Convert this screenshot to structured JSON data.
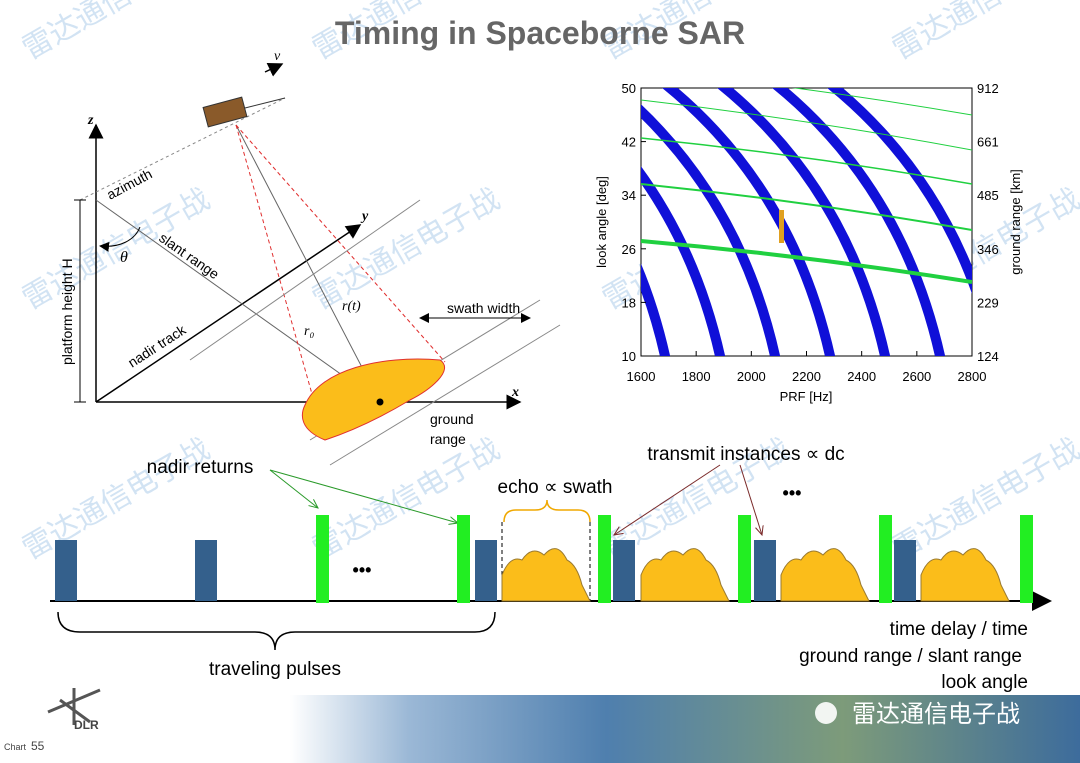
{
  "title": "Timing in Spaceborne SAR",
  "watermark": "雷达通信电子战",
  "geometry_labels": {
    "v": "v",
    "z": "z",
    "azimuth": "azimuth",
    "theta": "θ",
    "slant_range": "slant range",
    "y": "y",
    "platform_height": "platform height H",
    "nadir_track": "nadir track",
    "rt": "r(t)",
    "r0": "r₀",
    "swath_width": "swath width",
    "x": "x",
    "ground": "ground",
    "range": "range"
  },
  "chart_data": {
    "type": "line",
    "xlabel": "PRF [Hz]",
    "ylabel": "look angle [deg]",
    "y2label": "ground range [km]",
    "xlim": [
      1600,
      2800
    ],
    "xticks": [
      1600,
      1800,
      2000,
      2200,
      2400,
      2600,
      2800
    ],
    "ylim": [
      10,
      50
    ],
    "yticks": [
      10,
      18,
      26,
      34,
      42,
      50
    ],
    "y2lim": [
      124,
      912
    ],
    "y2ticks": [
      124,
      229,
      346,
      485,
      661,
      912
    ]
  },
  "timing": {
    "nadir_returns": "nadir returns",
    "echo": "echo ∝ swath",
    "transmit": "transmit instances ∝ dc",
    "dots": "•••",
    "traveling": "traveling pulses",
    "axis_labels": [
      "time delay / time",
      "ground range / slant range",
      "look angle"
    ]
  },
  "footer": {
    "logo": "DLR",
    "chart_label": "Chart",
    "page": "55",
    "wechat": "雷达通信电子战"
  }
}
